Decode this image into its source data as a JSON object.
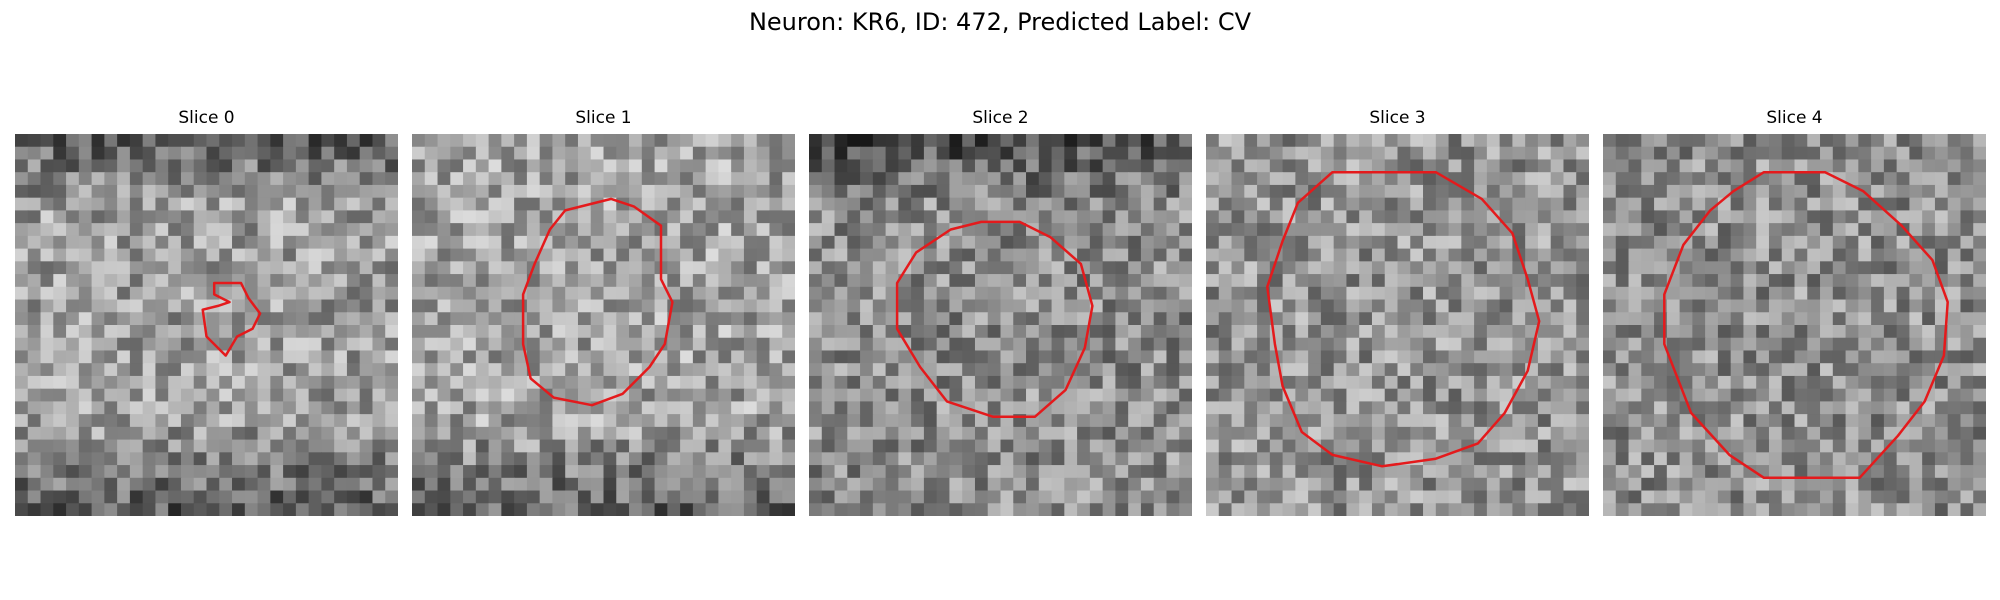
{
  "figure": {
    "title": "Neuron: KR6, ID: 472, Predicted Label: CV",
    "contour_color": "#e41a1c",
    "colormap": "grayscale",
    "grid_size": 30
  },
  "panels": [
    {
      "title": "Slice 0",
      "seed": 11,
      "base": 0.62,
      "dark_band_top": true,
      "dark_band_bottom": true,
      "contour": [
        [
          0.52,
          0.39
        ],
        [
          0.59,
          0.39
        ],
        [
          0.61,
          0.43
        ],
        [
          0.64,
          0.47
        ],
        [
          0.62,
          0.51
        ],
        [
          0.58,
          0.53
        ],
        [
          0.55,
          0.58
        ],
        [
          0.5,
          0.53
        ],
        [
          0.49,
          0.46
        ],
        [
          0.53,
          0.45
        ],
        [
          0.56,
          0.44
        ],
        [
          0.52,
          0.42
        ]
      ]
    },
    {
      "title": "Slice 1",
      "seed": 23,
      "base": 0.64,
      "dark_band_top": false,
      "dark_band_bottom": true,
      "contour": [
        [
          0.4,
          0.2
        ],
        [
          0.52,
          0.17
        ],
        [
          0.58,
          0.19
        ],
        [
          0.65,
          0.24
        ],
        [
          0.65,
          0.38
        ],
        [
          0.68,
          0.44
        ],
        [
          0.66,
          0.55
        ],
        [
          0.62,
          0.61
        ],
        [
          0.55,
          0.68
        ],
        [
          0.47,
          0.71
        ],
        [
          0.37,
          0.69
        ],
        [
          0.31,
          0.64
        ],
        [
          0.29,
          0.55
        ],
        [
          0.29,
          0.42
        ],
        [
          0.32,
          0.34
        ],
        [
          0.36,
          0.25
        ]
      ]
    },
    {
      "title": "Slice 2",
      "seed": 37,
      "base": 0.55,
      "dark_band_top": true,
      "dark_band_bottom": false,
      "contour": [
        [
          0.37,
          0.25
        ],
        [
          0.45,
          0.23
        ],
        [
          0.55,
          0.23
        ],
        [
          0.63,
          0.27
        ],
        [
          0.71,
          0.34
        ],
        [
          0.74,
          0.45
        ],
        [
          0.72,
          0.56
        ],
        [
          0.67,
          0.67
        ],
        [
          0.59,
          0.74
        ],
        [
          0.48,
          0.74
        ],
        [
          0.36,
          0.7
        ],
        [
          0.29,
          0.61
        ],
        [
          0.23,
          0.51
        ],
        [
          0.23,
          0.39
        ],
        [
          0.28,
          0.31
        ]
      ]
    },
    {
      "title": "Slice 3",
      "seed": 41,
      "base": 0.58,
      "dark_band_top": false,
      "dark_band_bottom": false,
      "contour": [
        [
          0.33,
          0.1
        ],
        [
          0.6,
          0.1
        ],
        [
          0.72,
          0.17
        ],
        [
          0.8,
          0.26
        ],
        [
          0.84,
          0.38
        ],
        [
          0.87,
          0.49
        ],
        [
          0.84,
          0.62
        ],
        [
          0.78,
          0.73
        ],
        [
          0.71,
          0.81
        ],
        [
          0.6,
          0.85
        ],
        [
          0.46,
          0.87
        ],
        [
          0.33,
          0.84
        ],
        [
          0.25,
          0.78
        ],
        [
          0.2,
          0.66
        ],
        [
          0.18,
          0.55
        ],
        [
          0.16,
          0.4
        ],
        [
          0.2,
          0.28
        ],
        [
          0.24,
          0.18
        ]
      ]
    },
    {
      "title": "Slice 4",
      "seed": 53,
      "base": 0.56,
      "dark_band_top": false,
      "dark_band_bottom": false,
      "contour": [
        [
          0.42,
          0.1
        ],
        [
          0.58,
          0.1
        ],
        [
          0.68,
          0.15
        ],
        [
          0.78,
          0.24
        ],
        [
          0.86,
          0.33
        ],
        [
          0.9,
          0.44
        ],
        [
          0.89,
          0.58
        ],
        [
          0.84,
          0.7
        ],
        [
          0.77,
          0.79
        ],
        [
          0.67,
          0.9
        ],
        [
          0.42,
          0.9
        ],
        [
          0.33,
          0.84
        ],
        [
          0.23,
          0.73
        ],
        [
          0.16,
          0.55
        ],
        [
          0.16,
          0.42
        ],
        [
          0.21,
          0.29
        ],
        [
          0.28,
          0.2
        ],
        [
          0.34,
          0.15
        ]
      ]
    }
  ]
}
